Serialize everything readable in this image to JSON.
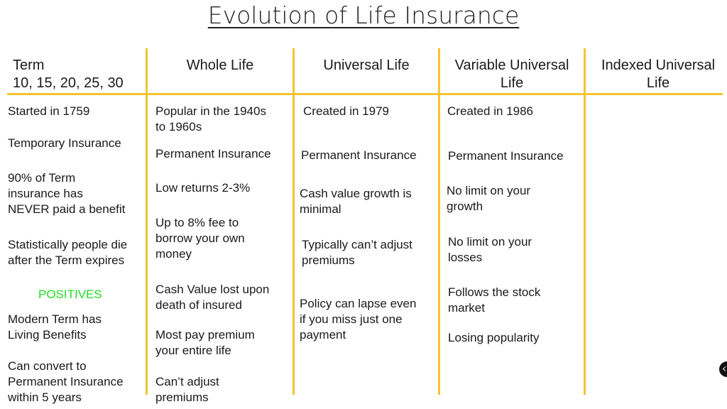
{
  "title": "Evolution of Life Insurance",
  "accent_color": "#f4c430",
  "columns": [
    {
      "header": "Term\n10, 15, 20, 25, 30",
      "items": [
        "Started in 1759",
        "Temporary Insurance",
        "90% of Term\ninsurance has\nNEVER paid a benefit",
        "Statistically people die\nafter the Term expires",
        "POSITIVES",
        "Modern Term has\nLiving Benefits",
        "Can convert to\nPermanent Insurance\nwithin 5 years"
      ]
    },
    {
      "header": "Whole Life",
      "items": [
        "Popular in the 1940s\nto 1960s",
        "Permanent Insurance",
        "Low returns 2-3%",
        "Up to 8% fee to\nborrow your own\nmoney",
        "Cash Value lost upon\ndeath of insured",
        "Most pay premium\nyour entire life",
        "Can’t adjust\npremiums"
      ]
    },
    {
      "header": "Universal Life",
      "items": [
        "Created in 1979",
        "Permanent Insurance",
        "Cash value growth is\nminimal",
        "Typically can’t adjust\npremiums",
        "Policy can lapse even\nif you miss just one\npayment"
      ]
    },
    {
      "header": "Variable Universal\nLife",
      "items": [
        "Created in 1986",
        "Permanent Insurance",
        "No limit on your\ngrowth",
        "No limit on your\nlosses",
        "Follows the stock\nmarket",
        "Losing popularity"
      ]
    },
    {
      "header": "Indexed Universal\nLife",
      "items": []
    }
  ]
}
